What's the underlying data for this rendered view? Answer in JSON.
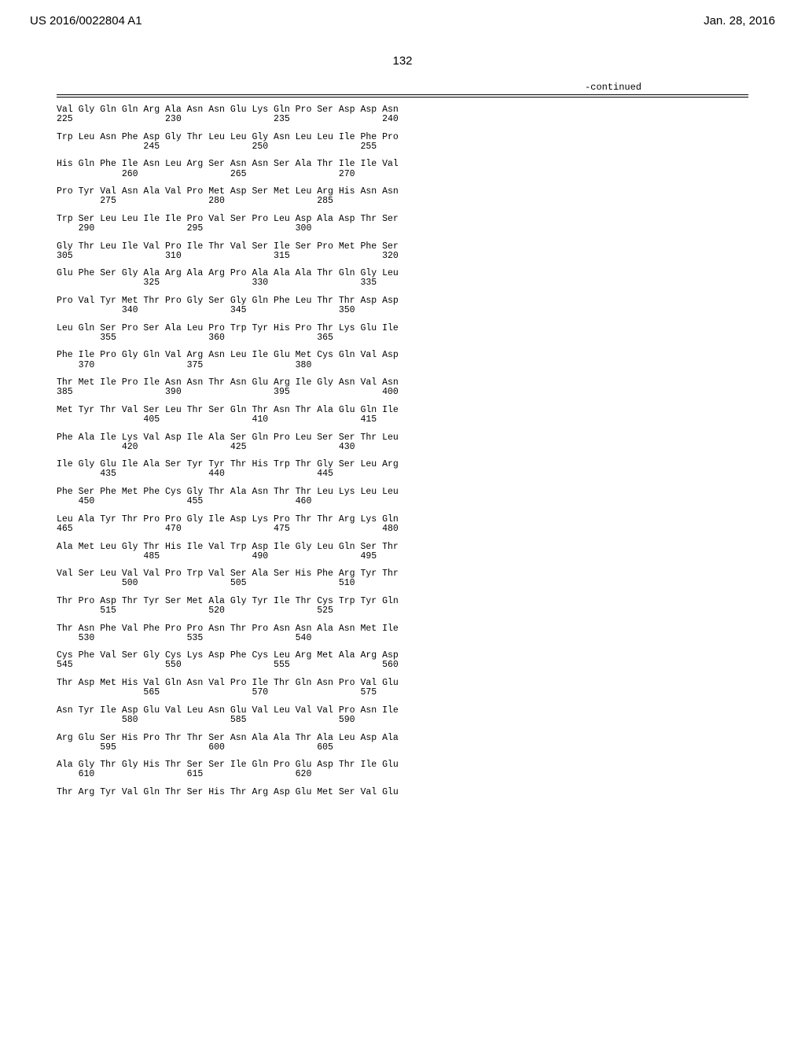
{
  "header": {
    "left": "US 2016/0022804 A1",
    "right": "Jan. 28, 2016"
  },
  "page_number": "132",
  "continued_label": "-continued",
  "sequence": {
    "cell_width_ch": 4,
    "blocks": [
      {
        "start": 225,
        "aa": [
          "Val",
          "Gly",
          "Gln",
          "Gln",
          "Arg",
          "Ala",
          "Asn",
          "Asn",
          "Glu",
          "Lys",
          "Gln",
          "Pro",
          "Ser",
          "Asp",
          "Asp",
          "Asn"
        ]
      },
      {
        "start": 241,
        "aa": [
          "Trp",
          "Leu",
          "Asn",
          "Phe",
          "Asp",
          "Gly",
          "Thr",
          "Leu",
          "Leu",
          "Gly",
          "Asn",
          "Leu",
          "Leu",
          "Ile",
          "Phe",
          "Pro"
        ]
      },
      {
        "start": 257,
        "aa": [
          "His",
          "Gln",
          "Phe",
          "Ile",
          "Asn",
          "Leu",
          "Arg",
          "Ser",
          "Asn",
          "Asn",
          "Ser",
          "Ala",
          "Thr",
          "Ile",
          "Ile",
          "Val"
        ]
      },
      {
        "start": 273,
        "aa": [
          "Pro",
          "Tyr",
          "Val",
          "Asn",
          "Ala",
          "Val",
          "Pro",
          "Met",
          "Asp",
          "Ser",
          "Met",
          "Leu",
          "Arg",
          "His",
          "Asn",
          "Asn"
        ]
      },
      {
        "start": 289,
        "aa": [
          "Trp",
          "Ser",
          "Leu",
          "Leu",
          "Ile",
          "Ile",
          "Pro",
          "Val",
          "Ser",
          "Pro",
          "Leu",
          "Asp",
          "Ala",
          "Asp",
          "Thr",
          "Ser"
        ]
      },
      {
        "start": 305,
        "aa": [
          "Gly",
          "Thr",
          "Leu",
          "Ile",
          "Val",
          "Pro",
          "Ile",
          "Thr",
          "Val",
          "Ser",
          "Ile",
          "Ser",
          "Pro",
          "Met",
          "Phe",
          "Ser"
        ]
      },
      {
        "start": 321,
        "aa": [
          "Glu",
          "Phe",
          "Ser",
          "Gly",
          "Ala",
          "Arg",
          "Ala",
          "Arg",
          "Pro",
          "Ala",
          "Ala",
          "Ala",
          "Thr",
          "Gln",
          "Gly",
          "Leu"
        ]
      },
      {
        "start": 337,
        "aa": [
          "Pro",
          "Val",
          "Tyr",
          "Met",
          "Thr",
          "Pro",
          "Gly",
          "Ser",
          "Gly",
          "Gln",
          "Phe",
          "Leu",
          "Thr",
          "Thr",
          "Asp",
          "Asp"
        ]
      },
      {
        "start": 353,
        "aa": [
          "Leu",
          "Gln",
          "Ser",
          "Pro",
          "Ser",
          "Ala",
          "Leu",
          "Pro",
          "Trp",
          "Tyr",
          "His",
          "Pro",
          "Thr",
          "Lys",
          "Glu",
          "Ile"
        ]
      },
      {
        "start": 369,
        "aa": [
          "Phe",
          "Ile",
          "Pro",
          "Gly",
          "Gln",
          "Val",
          "Arg",
          "Asn",
          "Leu",
          "Ile",
          "Glu",
          "Met",
          "Cys",
          "Gln",
          "Val",
          "Asp"
        ]
      },
      {
        "start": 385,
        "aa": [
          "Thr",
          "Met",
          "Ile",
          "Pro",
          "Ile",
          "Asn",
          "Asn",
          "Thr",
          "Asn",
          "Glu",
          "Arg",
          "Ile",
          "Gly",
          "Asn",
          "Val",
          "Asn"
        ]
      },
      {
        "start": 401,
        "aa": [
          "Met",
          "Tyr",
          "Thr",
          "Val",
          "Ser",
          "Leu",
          "Thr",
          "Ser",
          "Gln",
          "Thr",
          "Asn",
          "Thr",
          "Ala",
          "Glu",
          "Gln",
          "Ile"
        ]
      },
      {
        "start": 417,
        "aa": [
          "Phe",
          "Ala",
          "Ile",
          "Lys",
          "Val",
          "Asp",
          "Ile",
          "Ala",
          "Ser",
          "Gln",
          "Pro",
          "Leu",
          "Ser",
          "Ser",
          "Thr",
          "Leu"
        ]
      },
      {
        "start": 433,
        "aa": [
          "Ile",
          "Gly",
          "Glu",
          "Ile",
          "Ala",
          "Ser",
          "Tyr",
          "Tyr",
          "Thr",
          "His",
          "Trp",
          "Thr",
          "Gly",
          "Ser",
          "Leu",
          "Arg"
        ]
      },
      {
        "start": 449,
        "aa": [
          "Phe",
          "Ser",
          "Phe",
          "Met",
          "Phe",
          "Cys",
          "Gly",
          "Thr",
          "Ala",
          "Asn",
          "Thr",
          "Thr",
          "Leu",
          "Lys",
          "Leu",
          "Leu"
        ]
      },
      {
        "start": 465,
        "aa": [
          "Leu",
          "Ala",
          "Tyr",
          "Thr",
          "Pro",
          "Pro",
          "Gly",
          "Ile",
          "Asp",
          "Lys",
          "Pro",
          "Thr",
          "Thr",
          "Arg",
          "Lys",
          "Gln"
        ]
      },
      {
        "start": 481,
        "aa": [
          "Ala",
          "Met",
          "Leu",
          "Gly",
          "Thr",
          "His",
          "Ile",
          "Val",
          "Trp",
          "Asp",
          "Ile",
          "Gly",
          "Leu",
          "Gln",
          "Ser",
          "Thr"
        ]
      },
      {
        "start": 497,
        "aa": [
          "Val",
          "Ser",
          "Leu",
          "Val",
          "Val",
          "Pro",
          "Trp",
          "Val",
          "Ser",
          "Ala",
          "Ser",
          "His",
          "Phe",
          "Arg",
          "Tyr",
          "Thr"
        ]
      },
      {
        "start": 513,
        "aa": [
          "Thr",
          "Pro",
          "Asp",
          "Thr",
          "Tyr",
          "Ser",
          "Met",
          "Ala",
          "Gly",
          "Tyr",
          "Ile",
          "Thr",
          "Cys",
          "Trp",
          "Tyr",
          "Gln"
        ]
      },
      {
        "start": 529,
        "aa": [
          "Thr",
          "Asn",
          "Phe",
          "Val",
          "Phe",
          "Pro",
          "Pro",
          "Asn",
          "Thr",
          "Pro",
          "Asn",
          "Asn",
          "Ala",
          "Asn",
          "Met",
          "Ile"
        ]
      },
      {
        "start": 545,
        "aa": [
          "Cys",
          "Phe",
          "Val",
          "Ser",
          "Gly",
          "Cys",
          "Lys",
          "Asp",
          "Phe",
          "Cys",
          "Leu",
          "Arg",
          "Met",
          "Ala",
          "Arg",
          "Asp"
        ]
      },
      {
        "start": 561,
        "aa": [
          "Thr",
          "Asp",
          "Met",
          "His",
          "Val",
          "Gln",
          "Asn",
          "Val",
          "Pro",
          "Ile",
          "Thr",
          "Gln",
          "Asn",
          "Pro",
          "Val",
          "Glu"
        ]
      },
      {
        "start": 577,
        "aa": [
          "Asn",
          "Tyr",
          "Ile",
          "Asp",
          "Glu",
          "Val",
          "Leu",
          "Asn",
          "Glu",
          "Val",
          "Leu",
          "Val",
          "Val",
          "Pro",
          "Asn",
          "Ile"
        ]
      },
      {
        "start": 593,
        "aa": [
          "Arg",
          "Glu",
          "Ser",
          "His",
          "Pro",
          "Thr",
          "Thr",
          "Ser",
          "Asn",
          "Ala",
          "Ala",
          "Thr",
          "Ala",
          "Leu",
          "Asp",
          "Ala"
        ]
      },
      {
        "start": 609,
        "aa": [
          "Ala",
          "Gly",
          "Thr",
          "Gly",
          "His",
          "Thr",
          "Ser",
          "Ser",
          "Ile",
          "Gln",
          "Pro",
          "Glu",
          "Asp",
          "Thr",
          "Ile",
          "Glu"
        ]
      }
    ],
    "tail_line": [
      "Thr",
      "Arg",
      "Tyr",
      "Val",
      "Gln",
      "Thr",
      "Ser",
      "His",
      "Thr",
      "Arg",
      "Asp",
      "Glu",
      "Met",
      "Ser",
      "Val",
      "Glu"
    ],
    "number_positions": [
      1,
      6,
      11,
      16
    ]
  }
}
